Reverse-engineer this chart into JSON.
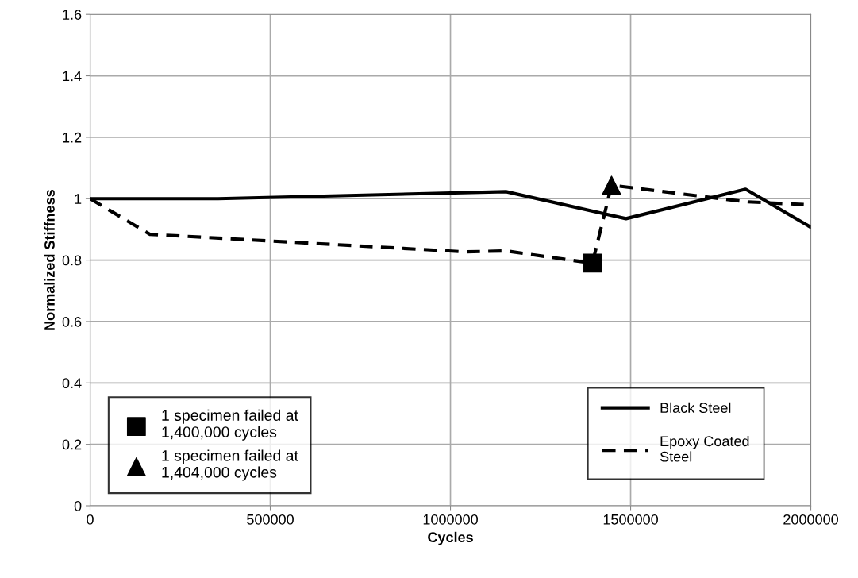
{
  "chart_data": {
    "type": "line",
    "xlabel": "Cycles",
    "ylabel": "Normalized Stiffness",
    "xlim": [
      0,
      2000000
    ],
    "xticks": [
      0,
      500000,
      1000000,
      1500000,
      2000000
    ],
    "ylim": [
      0,
      1.6
    ],
    "yticks": [
      0,
      0.2,
      0.4,
      0.6,
      0.8,
      1,
      1.2,
      1.4,
      1.6
    ],
    "grid": true,
    "legend": "bottom right",
    "series": [
      {
        "name": "Black Steel",
        "color": "#000000",
        "line_style": "solid",
        "marker": "none",
        "x": [
          0,
          355000,
          1154000,
          1487000,
          1819000,
          2000000
        ],
        "values": [
          1.0,
          1.0,
          1.023,
          0.935,
          1.031,
          0.907
        ]
      },
      {
        "name": "Epoxy Coated\nSteel",
        "color": "#000000",
        "line_style": "dashed",
        "marker": "none",
        "x": [
          0,
          166000,
          1040000,
          1154000,
          1394000,
          1447000,
          1819000,
          2000000
        ],
        "values": [
          1.0,
          0.884,
          0.827,
          0.83,
          0.79,
          1.044,
          0.99,
          0.98
        ]
      },
      {
        "name": "1 specimen failed at\n1,400,000 cycles",
        "type": "scatter",
        "color": "#000000",
        "marker": "square",
        "x": [
          1394000
        ],
        "values": [
          0.79
        ]
      },
      {
        "name": "1 specimen failed at\n1,404,000 cycles",
        "type": "scatter",
        "color": "#000000",
        "marker": "triangle",
        "x": [
          1447000
        ],
        "values": [
          1.044
        ]
      }
    ]
  }
}
